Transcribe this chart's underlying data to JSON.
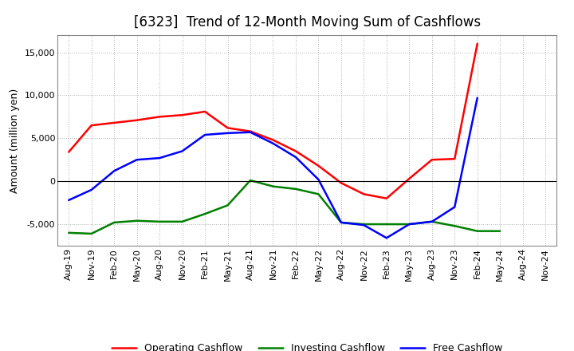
{
  "title": "[6323]  Trend of 12-Month Moving Sum of Cashflows",
  "ylabel": "Amount (million yen)",
  "background_color": "#ffffff",
  "grid_color": "#b0b0b0",
  "x_labels": [
    "Aug-19",
    "Nov-19",
    "Feb-20",
    "May-20",
    "Aug-20",
    "Nov-20",
    "Feb-21",
    "May-21",
    "Aug-21",
    "Nov-21",
    "Feb-22",
    "May-22",
    "Aug-22",
    "Nov-22",
    "Feb-23",
    "May-23",
    "Aug-23",
    "Nov-23",
    "Feb-24",
    "May-24",
    "Aug-24",
    "Nov-24"
  ],
  "operating_cashflow": [
    3400,
    6500,
    6800,
    7100,
    7500,
    7700,
    8100,
    6200,
    5800,
    4800,
    3500,
    1800,
    -200,
    -1500,
    -2000,
    300,
    2500,
    2600,
    16000,
    null,
    null,
    null
  ],
  "investing_cashflow": [
    -6000,
    -6100,
    -4800,
    -4600,
    -4700,
    -4700,
    -3800,
    -2800,
    100,
    -600,
    -900,
    -1500,
    -4800,
    -5000,
    -5000,
    -5000,
    -4700,
    -5200,
    -5800,
    -5800,
    null,
    null
  ],
  "free_cashflow": [
    -2200,
    -1000,
    1200,
    2500,
    2700,
    3500,
    5400,
    5600,
    5700,
    4400,
    2800,
    200,
    -4800,
    -5100,
    -6600,
    -5000,
    -4700,
    -3000,
    9700,
    null,
    null,
    null
  ],
  "operating_color": "#ff0000",
  "investing_color": "#008000",
  "free_color": "#0000ff",
  "ylim": [
    -7500,
    17000
  ],
  "yticks": [
    -5000,
    0,
    5000,
    10000,
    15000
  ],
  "line_width": 1.8,
  "title_fontsize": 12,
  "title_fontweight": "normal",
  "ylabel_fontsize": 9,
  "tick_fontsize": 8,
  "legend_fontsize": 9
}
